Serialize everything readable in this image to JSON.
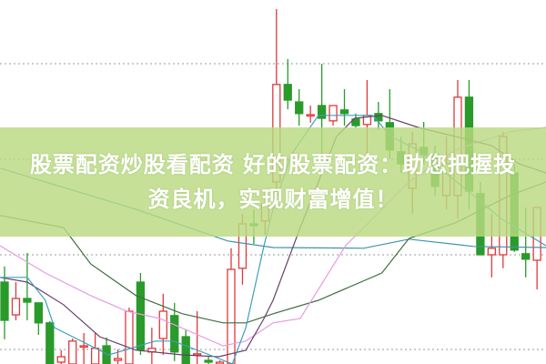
{
  "banner": {
    "line1": "股票配资炒股看配资 好的股票配资：助您把握投",
    "line2": "资良机，实现财富增值！"
  },
  "chart_data": {
    "type": "candlestick",
    "title": "",
    "xlabel": "",
    "ylabel": "",
    "value_scale": "relative price level 0-100 (no axis labels printed)",
    "ylim": [
      0,
      100
    ],
    "grid": true,
    "grid_levels": [
      82.5,
      56.25,
      30,
      4
    ],
    "colors": {
      "up": "#e0393e",
      "down": "#2a9a2a",
      "grid": "#999999"
    },
    "candles": [
      [
        22.5,
        26.8,
        6.8,
        12
      ],
      [
        13.5,
        22.5,
        12,
        18
      ],
      [
        18,
        30.5,
        12,
        17
      ],
      [
        16.8,
        16.8,
        8,
        11.3
      ],
      [
        11.3,
        11.8,
        0,
        0
      ],
      [
        0.5,
        3.8,
        0,
        2
      ],
      [
        0,
        7,
        0,
        6.3
      ],
      [
        5,
        8.5,
        0,
        5
      ],
      [
        0,
        8.5,
        0,
        4.3
      ],
      [
        5,
        7.3,
        0,
        0
      ],
      [
        1,
        4,
        0,
        1.5
      ],
      [
        0,
        15.5,
        0,
        14.5
      ],
      [
        22.5,
        25,
        2.5,
        3.8
      ],
      [
        3.3,
        10,
        0,
        4.3
      ],
      [
        7,
        19.3,
        2.5,
        14.5
      ],
      [
        13.3,
        16.8,
        0.8,
        3.3
      ],
      [
        7.5,
        9.5,
        0,
        0
      ],
      [
        2.5,
        14.5,
        0,
        2.8
      ],
      [
        1,
        2,
        0,
        0.5
      ],
      [
        0,
        1,
        0,
        0.5
      ],
      [
        0,
        31.8,
        0,
        26
      ],
      [
        26.3,
        41.3,
        21.8,
        38.5
      ],
      [
        38.5,
        42.5,
        33,
        38
      ],
      [
        39.3,
        47.5,
        35.5,
        43.8
      ],
      [
        50,
        97.5,
        42.5,
        76.8
      ],
      [
        76.8,
        83.8,
        70,
        72.5
      ],
      [
        72,
        75.5,
        65.5,
        68.8
      ],
      [
        68.3,
        71,
        66.3,
        68.5
      ],
      [
        71,
        82.5,
        56.3,
        67.5
      ],
      [
        66.8,
        71,
        65.5,
        71
      ],
      [
        69.8,
        75.5,
        65.5,
        68.8
      ],
      [
        67.3,
        68.8,
        65,
        65.5
      ],
      [
        65.8,
        78,
        56.3,
        68.3
      ],
      [
        68.8,
        72,
        64.3,
        66.8
      ],
      [
        66.3,
        75.5,
        56.3,
        58.8
      ],
      [
        58.3,
        62.5,
        52.5,
        55
      ],
      [
        48.3,
        63.8,
        41.3,
        60.5
      ],
      [
        59.5,
        66.5,
        55,
        57.5
      ],
      [
        57.5,
        60,
        46.3,
        48.8
      ],
      [
        46.3,
        62.5,
        42.5,
        55
      ],
      [
        46.3,
        78,
        40,
        73.3
      ],
      [
        73.3,
        78,
        42.5,
        47.5
      ],
      [
        46.8,
        50,
        30,
        30
      ],
      [
        30,
        41.3,
        23.8,
        31.8
      ],
      [
        30,
        63.8,
        26.3,
        62.5
      ],
      [
        52.5,
        55,
        30.8,
        31.3
      ],
      [
        30.3,
        43,
        23.8,
        28.8
      ],
      [
        28.5,
        43,
        20.5,
        43
      ]
    ],
    "moving_averages": [
      {
        "color": "#3f94aa",
        "points": [
          [
            -0.4,
            53.8
          ],
          [
            3.6,
            50
          ],
          [
            11.6,
            42.5
          ],
          [
            19.7,
            33.8
          ],
          [
            23.7,
            32
          ],
          [
            31.7,
            31.8
          ],
          [
            35.7,
            34.3
          ],
          [
            41.4,
            32.3
          ],
          [
            47.8,
            32
          ]
        ]
      },
      {
        "color": "#3f6f3f",
        "points": [
          [
            -0.4,
            40.8
          ],
          [
            5.2,
            37.5
          ],
          [
            7.6,
            27.5
          ],
          [
            11.6,
            18.8
          ],
          [
            15.7,
            13.8
          ],
          [
            19.3,
            11.3
          ],
          [
            21.3,
            11.3
          ],
          [
            23.7,
            13.8
          ],
          [
            27.7,
            17.5
          ],
          [
            33.3,
            25
          ],
          [
            35.7,
            34.5
          ],
          [
            39.8,
            38.8
          ],
          [
            44.6,
            46.3
          ],
          [
            47.8,
            50
          ]
        ]
      },
      {
        "color": "#e79be6",
        "points": [
          [
            -0.4,
            32.5
          ],
          [
            3.6,
            25
          ],
          [
            7.6,
            18.8
          ],
          [
            10.8,
            14.5
          ],
          [
            13.7,
            12.5
          ],
          [
            19.3,
            5
          ],
          [
            21.3,
            6.3
          ],
          [
            23.7,
            11.3
          ],
          [
            26.1,
            12.5
          ],
          [
            30.1,
            32.5
          ],
          [
            33.3,
            42.5
          ],
          [
            35.7,
            50
          ],
          [
            39.8,
            58.8
          ],
          [
            44.6,
            63.8
          ],
          [
            47.8,
            65
          ]
        ]
      },
      {
        "color": "#6b3f6b",
        "points": [
          [
            -0.4,
            23.8
          ],
          [
            2,
            22.5
          ],
          [
            5.2,
            16.3
          ],
          [
            8.4,
            7.5
          ],
          [
            11.6,
            3.8
          ],
          [
            15.7,
            2.5
          ],
          [
            18.9,
            2
          ],
          [
            21.3,
            3.8
          ],
          [
            22.9,
            12.5
          ],
          [
            23.7,
            17.5
          ],
          [
            26.1,
            37.5
          ],
          [
            27.7,
            50
          ],
          [
            29.3,
            62.5
          ],
          [
            30.9,
            67.5
          ],
          [
            33.3,
            68.3
          ],
          [
            36.5,
            65
          ],
          [
            39.8,
            62.5
          ],
          [
            43,
            60
          ],
          [
            45.4,
            55
          ],
          [
            47.8,
            52.5
          ]
        ]
      },
      {
        "color": "#3aa0bc",
        "points": [
          [
            -0.4,
            23.8
          ],
          [
            2,
            23.8
          ],
          [
            3.6,
            17.5
          ],
          [
            4.4,
            10
          ],
          [
            9.2,
            2.5
          ],
          [
            13.3,
            6.3
          ],
          [
            14.9,
            6.3
          ],
          [
            18.1,
            2.5
          ],
          [
            20.1,
            0
          ],
          [
            21.3,
            10
          ],
          [
            22.9,
            32.5
          ],
          [
            23.7,
            42.5
          ],
          [
            25.3,
            57.5
          ],
          [
            27.7,
            68.3
          ],
          [
            30.1,
            68.3
          ],
          [
            32.5,
            68.3
          ],
          [
            34.1,
            62.5
          ],
          [
            36.5,
            58.8
          ],
          [
            38.9,
            52.5
          ],
          [
            41.4,
            46.3
          ],
          [
            43.8,
            40
          ],
          [
            47.8,
            32.5
          ]
        ]
      }
    ]
  }
}
